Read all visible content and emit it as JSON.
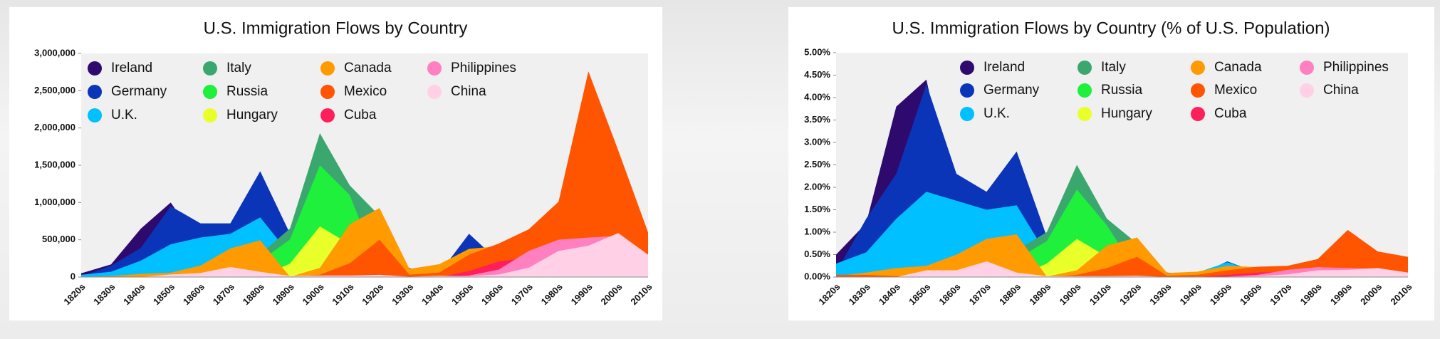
{
  "chart_data": [
    {
      "type": "area",
      "title": "U.S. Immigration Flows by Country",
      "categories": [
        "1820s",
        "1830s",
        "1840s",
        "1850s",
        "1860s",
        "1870s",
        "1880s",
        "1890s",
        "1900s",
        "1910s",
        "1920s",
        "1930s",
        "1940s",
        "1950s",
        "1960s",
        "1970s",
        "1980s",
        "1990s",
        "2000s",
        "2010s"
      ],
      "ylim": [
        0,
        3000000
      ],
      "yticks": [
        0,
        {
          "value": 500000,
          "label": "500,000"
        },
        {
          "value": 1000000,
          "label": "1,000,000"
        },
        {
          "value": 1500000,
          "label": "1,500,000"
        },
        {
          "value": 2000000,
          "label": "2,000,000"
        },
        {
          "value": 2500000,
          "label": "2,500,000"
        },
        {
          "value": 3000000,
          "label": "3,000,000"
        }
      ],
      "series": [
        {
          "name": "Ireland",
          "color": "#2e0a6e",
          "values": [
            50000,
            170000,
            650000,
            1000000,
            430000,
            440000,
            650000,
            390000,
            340000,
            150000,
            210000,
            10000,
            20000,
            50000,
            40000,
            10000,
            30000,
            60000,
            40000,
            20000
          ]
        },
        {
          "name": "Germany",
          "color": "#0b35b8",
          "values": [
            10000,
            150000,
            390000,
            950000,
            720000,
            720000,
            1420000,
            580000,
            330000,
            170000,
            390000,
            120000,
            50000,
            580000,
            210000,
            70000,
            70000,
            90000,
            100000,
            50000
          ]
        },
        {
          "name": "U.K.",
          "color": "#00c0ff",
          "values": [
            30000,
            70000,
            220000,
            440000,
            530000,
            580000,
            800000,
            300000,
            470000,
            340000,
            340000,
            30000,
            130000,
            200000,
            210000,
            140000,
            160000,
            150000,
            170000,
            90000
          ]
        },
        {
          "name": "Italy",
          "color": "#3aa86e",
          "values": [
            0,
            0,
            2000,
            9000,
            12000,
            46000,
            307000,
            652000,
            1930000,
            1230000,
            820000,
            68000,
            57000,
            185000,
            214000,
            130000,
            60000,
            70000,
            30000,
            20000
          ]
        },
        {
          "name": "Russia",
          "color": "#1ef03c",
          "values": [
            0,
            0,
            0,
            0,
            2000,
            39000,
            213000,
            505000,
            1500000,
            1100000,
            100000,
            0,
            0,
            0,
            0,
            0,
            0,
            0,
            0,
            0
          ]
        },
        {
          "name": "Hungary",
          "color": "#e8ff2a",
          "values": [
            0,
            0,
            0,
            0,
            0,
            0,
            0,
            180000,
            680000,
            440000,
            30000,
            0,
            0,
            0,
            0,
            0,
            0,
            0,
            0,
            0
          ]
        },
        {
          "name": "Canada",
          "color": "#ff9a00",
          "values": [
            2000,
            14000,
            42000,
            59000,
            154000,
            384000,
            493000,
            3000,
            123000,
            708000,
            925000,
            110000,
            172000,
            378000,
            413000,
            170000,
            157000,
            190000,
            230000,
            150000
          ]
        },
        {
          "name": "Mexico",
          "color": "#ff5500",
          "values": [
            4000,
            7000,
            3000,
            3000,
            2000,
            5000,
            2000,
            1000,
            31000,
            185000,
            500000,
            32000,
            60000,
            300000,
            450000,
            640000,
            1010000,
            2760000,
            1700000,
            600000
          ]
        },
        {
          "name": "Cuba",
          "color": "#ff1f5a",
          "values": [
            0,
            0,
            0,
            0,
            0,
            0,
            0,
            0,
            0,
            0,
            0,
            0,
            0,
            80000,
            210000,
            260000,
            145000,
            170000,
            270000,
            150000
          ]
        },
        {
          "name": "Philippines",
          "color": "#ff80c0",
          "values": [
            0,
            0,
            0,
            0,
            0,
            0,
            0,
            0,
            0,
            0,
            0,
            0,
            0,
            20000,
            100000,
            350000,
            500000,
            530000,
            550000,
            300000
          ]
        },
        {
          "name": "China",
          "color": "#ffd0e6",
          "values": [
            0,
            0,
            0,
            35000,
            55000,
            135000,
            70000,
            15000,
            20000,
            20000,
            30000,
            5000,
            17000,
            10000,
            35000,
            125000,
            350000,
            420000,
            590000,
            300000
          ]
        }
      ]
    },
    {
      "type": "area",
      "title": "U.S. Immigration Flows by Country (% of U.S. Population)",
      "categories": [
        "1820s",
        "1830s",
        "1840s",
        "1850s",
        "1860s",
        "1870s",
        "1880s",
        "1890s",
        "1900s",
        "1910s",
        "1920s",
        "1930s",
        "1940s",
        "1950s",
        "1960s",
        "1970s",
        "1980s",
        "1990s",
        "2000s",
        "2010s"
      ],
      "ylim": [
        0,
        5
      ],
      "yticks": [
        {
          "value": 0,
          "label": "0.00%"
        },
        {
          "value": 0.5,
          "label": "0.50%"
        },
        {
          "value": 1,
          "label": "1.00%"
        },
        {
          "value": 1.5,
          "label": "1.50%"
        },
        {
          "value": 2,
          "label": "2.00%"
        },
        {
          "value": 2.5,
          "label": "2.50%"
        },
        {
          "value": 3,
          "label": "3.00%"
        },
        {
          "value": 3.5,
          "label": "3.50%"
        },
        {
          "value": 4,
          "label": "4.00%"
        },
        {
          "value": 4.5,
          "label": "4.50%"
        },
        {
          "value": 5,
          "label": "5.00%"
        }
      ],
      "series": [
        {
          "name": "Ireland",
          "color": "#2e0a6e",
          "values": [
            0.5,
            1.2,
            3.8,
            4.4,
            1.4,
            1.1,
            1.3,
            0.6,
            0.4,
            0.15,
            0.2,
            0.01,
            0.01,
            0.03,
            0.02,
            0.01,
            0.01,
            0.02,
            0.01,
            0.01
          ]
        },
        {
          "name": "Germany",
          "color": "#0b35b8",
          "values": [
            0.1,
            1.3,
            2.3,
            4.3,
            2.3,
            1.9,
            2.8,
            0.9,
            0.4,
            0.2,
            0.35,
            0.1,
            0.04,
            0.35,
            0.1,
            0.03,
            0.03,
            0.04,
            0.04,
            0.02
          ]
        },
        {
          "name": "U.K.",
          "color": "#00c0ff",
          "values": [
            0.3,
            0.55,
            1.3,
            1.9,
            1.7,
            1.5,
            1.6,
            0.5,
            0.6,
            0.35,
            0.3,
            0.02,
            0.1,
            0.33,
            0.12,
            0.07,
            0.07,
            0.06,
            0.06,
            0.03
          ]
        },
        {
          "name": "Italy",
          "color": "#3aa86e",
          "values": [
            0,
            0,
            0,
            0,
            0,
            0.1,
            0.6,
            1.0,
            2.5,
            1.3,
            0.75,
            0.05,
            0.04,
            0.12,
            0.12,
            0.06,
            0.03,
            0.03,
            0.01,
            0.01
          ]
        },
        {
          "name": "Russia",
          "color": "#1ef03c",
          "values": [
            0,
            0,
            0,
            0,
            0,
            0.1,
            0.4,
            0.8,
            1.95,
            1.15,
            0.1,
            0,
            0,
            0,
            0,
            0,
            0,
            0,
            0,
            0
          ]
        },
        {
          "name": "Hungary",
          "color": "#e8ff2a",
          "values": [
            0,
            0,
            0,
            0,
            0,
            0,
            0,
            0.3,
            0.85,
            0.45,
            0.03,
            0,
            0,
            0,
            0,
            0,
            0,
            0,
            0,
            0
          ]
        },
        {
          "name": "Canada",
          "color": "#ff9a00",
          "values": [
            0.02,
            0.1,
            0.2,
            0.25,
            0.5,
            0.85,
            0.95,
            0.01,
            0.15,
            0.7,
            0.88,
            0.09,
            0.12,
            0.25,
            0.22,
            0.08,
            0.07,
            0.07,
            0.08,
            0.05
          ]
        },
        {
          "name": "Mexico",
          "color": "#ff5500",
          "values": [
            0.05,
            0.05,
            0.02,
            0,
            0,
            0,
            0,
            0,
            0.05,
            0.2,
            0.45,
            0.03,
            0.05,
            0.15,
            0.23,
            0.25,
            0.4,
            1.05,
            0.57,
            0.45
          ]
        },
        {
          "name": "Cuba",
          "color": "#ff1f5a",
          "values": [
            0,
            0,
            0,
            0,
            0,
            0,
            0,
            0,
            0,
            0,
            0,
            0,
            0,
            0.05,
            0.1,
            0.12,
            0.06,
            0.07,
            0.09,
            0.05
          ]
        },
        {
          "name": "Philippines",
          "color": "#ff80c0",
          "values": [
            0,
            0,
            0,
            0,
            0,
            0,
            0,
            0,
            0,
            0,
            0,
            0,
            0,
            0.01,
            0.05,
            0.16,
            0.22,
            0.2,
            0.19,
            0.1
          ]
        },
        {
          "name": "China",
          "color": "#ffd0e6",
          "values": [
            0,
            0,
            0,
            0.15,
            0.15,
            0.35,
            0.1,
            0.02,
            0.02,
            0.02,
            0.03,
            0,
            0.01,
            0,
            0.02,
            0.06,
            0.15,
            0.16,
            0.2,
            0.1
          ]
        }
      ]
    }
  ]
}
